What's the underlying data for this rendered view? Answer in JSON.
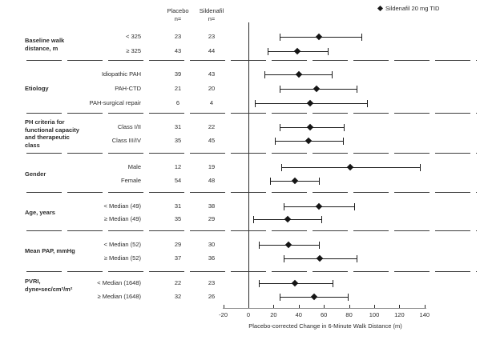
{
  "figure": {
    "legend_label": "Sildenafil 20 mg TID",
    "header": {
      "placebo": "Placebo\nn=",
      "sildenafil": "Sildenafil\nn="
    },
    "colors": {
      "marker": "#151515",
      "line": "#1c1c1c",
      "axis": "#8f8f8f",
      "text": "#2b2b2b"
    }
  },
  "chart_data": {
    "type": "scatter",
    "variant": "forest-plot",
    "title": "",
    "legend": [
      {
        "marker": "black-diamond",
        "label": "Sildenafil 20 mg TID"
      }
    ],
    "legend_position": "top-right",
    "xlabel": "Placebo-corrected Change in 6-Minute Walk Distance (m)",
    "xlim": [
      -20,
      140
    ],
    "xticks": [
      -20,
      0,
      20,
      40,
      60,
      80,
      100,
      120,
      140
    ],
    "reference_line_x": 0,
    "grid": false,
    "column_headers": [
      "Placebo n=",
      "Sildenafil n="
    ],
    "groups": [
      {
        "category": "Baseline walk\ndistance, m",
        "rows": [
          {
            "label": "< 325",
            "placebo_n": "23",
            "sildenafil_n": "23",
            "estimate": 56,
            "ci_low": 25,
            "ci_high": 90
          },
          {
            "label": "≥ 325",
            "placebo_n": "43",
            "sildenafil_n": "44",
            "estimate": 39,
            "ci_low": 15,
            "ci_high": 63
          }
        ]
      },
      {
        "category": "Etiology",
        "rows": [
          {
            "label": "Idiopathic PAH",
            "placebo_n": "39",
            "sildenafil_n": "43",
            "estimate": 40,
            "ci_low": 13,
            "ci_high": 66
          },
          {
            "label": "PAH-CTD",
            "placebo_n": "21",
            "sildenafil_n": "20",
            "estimate": 54,
            "ci_low": 25,
            "ci_high": 86
          },
          {
            "label": "PAH-surgical repair",
            "placebo_n": "6",
            "sildenafil_n": "4",
            "estimate": 49,
            "ci_low": 5,
            "ci_high": 94
          }
        ]
      },
      {
        "category": "PH criteria for\nfunctional capacity\nand therapeutic\nclass",
        "rows": [
          {
            "label": "Class I/II",
            "placebo_n": "31",
            "sildenafil_n": "22",
            "estimate": 49,
            "ci_low": 25,
            "ci_high": 76
          },
          {
            "label": "Class III/IV",
            "placebo_n": "35",
            "sildenafil_n": "45",
            "estimate": 48,
            "ci_low": 21,
            "ci_high": 75
          }
        ]
      },
      {
        "category": "Gender",
        "rows": [
          {
            "label": "Male",
            "placebo_n": "12",
            "sildenafil_n": "19",
            "estimate": 81,
            "ci_low": 26,
            "ci_high": 136
          },
          {
            "label": "Female",
            "placebo_n": "54",
            "sildenafil_n": "48",
            "estimate": 37,
            "ci_low": 17,
            "ci_high": 56
          }
        ]
      },
      {
        "category": "Age, years",
        "rows": [
          {
            "label": "< Median (49)",
            "placebo_n": "31",
            "sildenafil_n": "38",
            "estimate": 56,
            "ci_low": 28,
            "ci_high": 84
          },
          {
            "label": "≥ Median (49)",
            "placebo_n": "35",
            "sildenafil_n": "29",
            "estimate": 31,
            "ci_low": 4,
            "ci_high": 58
          }
        ]
      },
      {
        "category": "Mean PAP, mmHg",
        "rows": [
          {
            "label": "< Median (52)",
            "placebo_n": "29",
            "sildenafil_n": "30",
            "estimate": 32,
            "ci_low": 8,
            "ci_high": 56
          },
          {
            "label": "≥ Median (52)",
            "placebo_n": "37",
            "sildenafil_n": "36",
            "estimate": 57,
            "ci_low": 28,
            "ci_high": 86
          }
        ]
      },
      {
        "category": "PVRI,\ndyne•sec/cm²/m²",
        "rows": [
          {
            "label": "< Median (1648)",
            "placebo_n": "22",
            "sildenafil_n": "23",
            "estimate": 37,
            "ci_low": 8,
            "ci_high": 67
          },
          {
            "label": "≥ Median (1648)",
            "placebo_n": "32",
            "sildenafil_n": "26",
            "estimate": 52,
            "ci_low": 25,
            "ci_high": 79
          }
        ]
      }
    ]
  }
}
